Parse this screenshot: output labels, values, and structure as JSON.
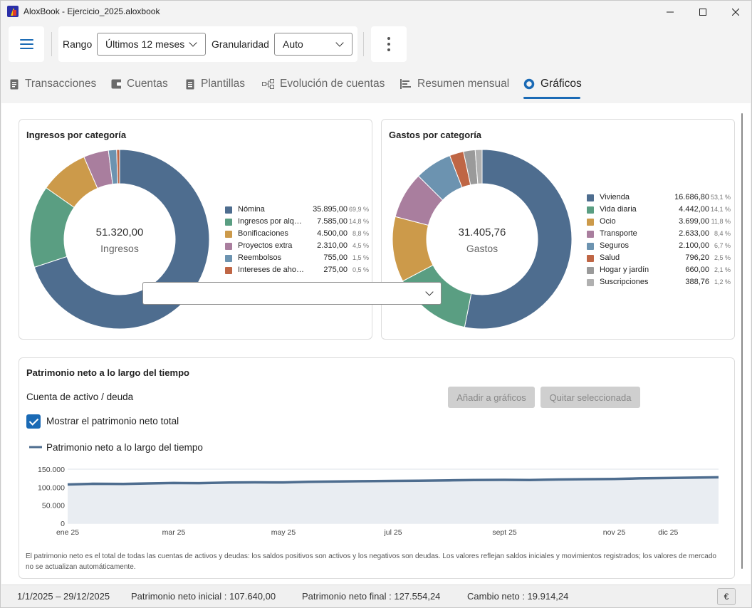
{
  "window": {
    "title": "AloxBook - Ejercicio_2025.aloxbook"
  },
  "toolbar": {
    "range_label": "Rango",
    "range_value": "Últimos 12 meses",
    "granularity_label": "Granularidad",
    "granularity_value": "Auto"
  },
  "tabs": [
    {
      "label": "Transacciones",
      "icon": "document-icon"
    },
    {
      "label": "Cuentas",
      "icon": "wallet-icon"
    },
    {
      "label": "Plantillas",
      "icon": "template-icon"
    },
    {
      "label": "Evolución de cuentas",
      "icon": "flow-icon"
    },
    {
      "label": "Resumen mensual",
      "icon": "list-icon"
    },
    {
      "label": "Gráficos",
      "icon": "donut-icon",
      "active": true
    }
  ],
  "income": {
    "title": "Ingresos por categoría",
    "total": "51.320,00",
    "total_label": "Ingresos"
  },
  "expenses": {
    "title": "Gastos por categoría",
    "total": "31.405,76",
    "total_label": "Gastos"
  },
  "networth": {
    "title": "Patrimonio neto a lo largo del tiempo",
    "account_label": "Cuenta de activo / deuda",
    "account_value": "",
    "add_button": "Añadir a gráficos",
    "remove_button": "Quitar seleccionada",
    "show_total_label": "Mostrar el patrimonio neto total",
    "show_total_checked": true,
    "footnote": "El patrimonio neto es el total de todas las cuentas de activos y deudas: los saldos positivos son activos y los negativos son deudas. Los valores reflejan saldos iniciales y movimientos registrados; los valores de mercado no se actualizan automáticamente."
  },
  "status": {
    "period": "1/1/2025 – 29/12/2025",
    "initial": "Patrimonio neto inicial : 107.640,00",
    "final": "Patrimonio neto final : 127.554,24",
    "change": "Cambio neto : 19.914,24",
    "currency": "€"
  },
  "chart_data": [
    {
      "type": "pie",
      "title": "Ingresos por categoría",
      "center_value": "51.320,00",
      "center_label": "Ingresos",
      "slices": [
        {
          "name": "Nómina",
          "value": 35895.0,
          "value_text": "35.895,00",
          "pct": "69,9 %",
          "color": "#4e6d8f"
        },
        {
          "name": "Ingresos por alquiler",
          "value": 7585.0,
          "value_text": "7.585,00",
          "pct": "14,8 %",
          "color": "#5a9e82"
        },
        {
          "name": "Bonificaciones",
          "value": 4500.0,
          "value_text": "4.500,00",
          "pct": "8,8 %",
          "color": "#cc9a4a"
        },
        {
          "name": "Proyectos extra",
          "value": 2310.0,
          "value_text": "2.310,00",
          "pct": "4,5 %",
          "color": "#a97e9e"
        },
        {
          "name": "Reembolsos",
          "value": 755.0,
          "value_text": "755,00",
          "pct": "1,5 %",
          "color": "#6c93b0"
        },
        {
          "name": "Intereses de ahorro",
          "value": 275.0,
          "value_text": "275,00",
          "pct": "0,5 %",
          "color": "#bf6645"
        }
      ]
    },
    {
      "type": "pie",
      "title": "Gastos por categoría",
      "center_value": "31.405,76",
      "center_label": "Gastos",
      "slices": [
        {
          "name": "Vivienda",
          "value": 16686.8,
          "value_text": "16.686,80",
          "pct": "53,1 %",
          "color": "#4e6d8f"
        },
        {
          "name": "Vida diaria",
          "value": 4442.0,
          "value_text": "4.442,00",
          "pct": "14,1 %",
          "color": "#5a9e82"
        },
        {
          "name": "Ocio",
          "value": 3699.0,
          "value_text": "3.699,00",
          "pct": "11,8 %",
          "color": "#cc9a4a"
        },
        {
          "name": "Transporte",
          "value": 2633.0,
          "value_text": "2.633,00",
          "pct": "8,4 %",
          "color": "#a97e9e"
        },
        {
          "name": "Seguros",
          "value": 2100.0,
          "value_text": "2.100,00",
          "pct": "6,7 %",
          "color": "#6c93b0"
        },
        {
          "name": "Salud",
          "value": 796.2,
          "value_text": "796,20",
          "pct": "2,5 %",
          "color": "#bf6645"
        },
        {
          "name": "Hogar y jardín",
          "value": 660.0,
          "value_text": "660,00",
          "pct": "2,1 %",
          "color": "#9a9a9a"
        },
        {
          "name": "Suscripciones",
          "value": 388.76,
          "value_text": "388,76",
          "pct": "1,2 %",
          "color": "#b0b0b0"
        }
      ]
    },
    {
      "type": "area",
      "title": "",
      "series": [
        {
          "name": "Patrimonio neto a lo largo del tiempo",
          "color": "#4e6d8f",
          "x": [
            "2025-01-01",
            "2025-01-15",
            "2025-02-01",
            "2025-02-15",
            "2025-03-01",
            "2025-03-15",
            "2025-04-01",
            "2025-04-15",
            "2025-05-01",
            "2025-05-15",
            "2025-06-01",
            "2025-06-15",
            "2025-07-01",
            "2025-07-15",
            "2025-08-01",
            "2025-08-15",
            "2025-09-01",
            "2025-09-15",
            "2025-10-01",
            "2025-10-15",
            "2025-11-01",
            "2025-11-15",
            "2025-12-01",
            "2025-12-15",
            "2025-12-29"
          ],
          "values": [
            107640,
            109500,
            109000,
            110500,
            111800,
            111200,
            113000,
            113500,
            113200,
            115000,
            116000,
            116800,
            117500,
            118000,
            119000,
            119800,
            120500,
            120000,
            121500,
            122000,
            122800,
            124500,
            125500,
            126500,
            127554
          ]
        }
      ],
      "yticks": [
        "150.000",
        "100.000",
        "50.000",
        "0"
      ],
      "ytick_values": [
        150000,
        100000,
        50000,
        0
      ],
      "ylim": [
        0,
        150000
      ],
      "xticks": [
        {
          "label": "ene 25",
          "date": "2025-01-01"
        },
        {
          "label": "mar 25",
          "date": "2025-03-01"
        },
        {
          "label": "may 25",
          "date": "2025-05-01"
        },
        {
          "label": "jul 25",
          "date": "2025-07-01"
        },
        {
          "label": "sept 25",
          "date": "2025-09-01"
        },
        {
          "label": "nov 25",
          "date": "2025-11-01"
        },
        {
          "label": "dic 25",
          "date": "2025-12-01"
        }
      ],
      "xlim": [
        "2025-01-01",
        "2025-12-29"
      ],
      "grid": true,
      "legend": "top-left"
    }
  ]
}
